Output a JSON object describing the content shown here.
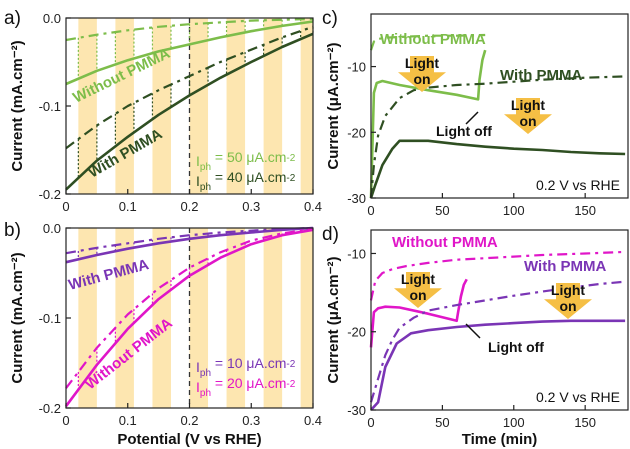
{
  "colors": {
    "light_green": "#7dbd4a",
    "dark_green": "#2f4f22",
    "magenta": "#e016c8",
    "purple": "#7a35b5",
    "stripe": "#fde6b0",
    "arrow": "#f5bf45"
  },
  "chart_data": [
    {
      "id": "a",
      "type": "line",
      "panel_label": "a)",
      "xlabel": "",
      "ylabel": "Current (mA.cm⁻²)",
      "xlim": [
        0,
        0.4
      ],
      "ylim": [
        -0.2,
        0.0
      ],
      "xticks": [
        "0",
        "0.1",
        "0.2",
        "0.3",
        "0.4"
      ],
      "yticks": [
        "0.0",
        "-0.1",
        "-0.2"
      ],
      "light_on_intervals": [
        [
          0.02,
          0.05
        ],
        [
          0.08,
          0.11
        ],
        [
          0.14,
          0.17
        ],
        [
          0.2,
          0.23
        ],
        [
          0.26,
          0.29
        ],
        [
          0.32,
          0.35
        ],
        [
          0.38,
          0.4
        ]
      ],
      "reference_x": 0.2,
      "series": [
        {
          "name": "Without PMMA",
          "color": "light_green",
          "style": "dashed",
          "condition": "light",
          "x": [
            0,
            0.05,
            0.1,
            0.15,
            0.2,
            0.25,
            0.3,
            0.35,
            0.4
          ],
          "y": [
            -0.025,
            -0.019,
            -0.014,
            -0.01,
            -0.007,
            -0.005,
            -0.003,
            -0.002,
            -0.001
          ]
        },
        {
          "name": "Without PMMA",
          "color": "light_green",
          "style": "solid",
          "condition": "dark",
          "x": [
            0,
            0.05,
            0.1,
            0.15,
            0.2,
            0.25,
            0.3,
            0.35,
            0.4
          ],
          "y": [
            -0.075,
            -0.06,
            -0.048,
            -0.038,
            -0.03,
            -0.022,
            -0.015,
            -0.009,
            -0.004
          ]
        },
        {
          "name": "With PMMA",
          "color": "dark_green",
          "style": "dashed",
          "condition": "light",
          "x": [
            0,
            0.05,
            0.1,
            0.15,
            0.2,
            0.25,
            0.3,
            0.35,
            0.4
          ],
          "y": [
            -0.148,
            -0.122,
            -0.1,
            -0.082,
            -0.066,
            -0.05,
            -0.036,
            -0.022,
            -0.01
          ]
        },
        {
          "name": "With PMMA",
          "color": "dark_green",
          "style": "solid",
          "condition": "dark",
          "x": [
            0,
            0.05,
            0.1,
            0.15,
            0.2,
            0.25,
            0.3,
            0.35,
            0.4
          ],
          "y": [
            -0.195,
            -0.162,
            -0.135,
            -0.11,
            -0.088,
            -0.068,
            -0.05,
            -0.033,
            -0.018
          ]
        }
      ],
      "annotations": [
        {
          "text": "Without PMMA",
          "color": "light_green"
        },
        {
          "text": "With PMMA",
          "color": "dark_green"
        }
      ],
      "iph": [
        {
          "label": "I",
          "sub": "ph",
          "value": " = 50 μA.cm",
          "sup": "-2",
          "color": "light_green"
        },
        {
          "label": "I",
          "sub": "ph",
          "value": " = 40 μA.cm",
          "sup": "-2",
          "color": "dark_green"
        }
      ]
    },
    {
      "id": "b",
      "type": "line",
      "panel_label": "b)",
      "xlabel": "Potential (V vs RHE)",
      "ylabel": "Current (mA.cm⁻²)",
      "xlim": [
        0,
        0.4
      ],
      "ylim": [
        -0.2,
        0.0
      ],
      "xticks": [
        "0",
        "0.1",
        "0.2",
        "0.3",
        "0.4"
      ],
      "yticks": [
        "0.0",
        "-0.1",
        "-0.2"
      ],
      "light_on_intervals": [
        [
          0.02,
          0.05
        ],
        [
          0.08,
          0.11
        ],
        [
          0.14,
          0.17
        ],
        [
          0.2,
          0.23
        ],
        [
          0.26,
          0.29
        ],
        [
          0.32,
          0.35
        ],
        [
          0.38,
          0.4
        ]
      ],
      "reference_x": 0.2,
      "series": [
        {
          "name": "With PMMA",
          "color": "purple",
          "style": "dashed",
          "condition": "light",
          "x": [
            0,
            0.05,
            0.1,
            0.15,
            0.2,
            0.25,
            0.3,
            0.35,
            0.4
          ],
          "y": [
            -0.028,
            -0.022,
            -0.017,
            -0.012,
            -0.008,
            -0.005,
            -0.003,
            -0.001,
            0.0
          ]
        },
        {
          "name": "With PMMA",
          "color": "purple",
          "style": "solid",
          "condition": "dark",
          "x": [
            0,
            0.05,
            0.1,
            0.15,
            0.2,
            0.25,
            0.3,
            0.35,
            0.4
          ],
          "y": [
            -0.038,
            -0.03,
            -0.023,
            -0.017,
            -0.012,
            -0.008,
            -0.005,
            -0.002,
            0.0
          ]
        },
        {
          "name": "Without PMMA",
          "color": "magenta",
          "style": "dashed",
          "condition": "light",
          "x": [
            0,
            0.05,
            0.1,
            0.15,
            0.2,
            0.25,
            0.3,
            0.35,
            0.4
          ],
          "y": [
            -0.178,
            -0.133,
            -0.096,
            -0.067,
            -0.044,
            -0.027,
            -0.014,
            -0.006,
            -0.001
          ]
        },
        {
          "name": "Without PMMA",
          "color": "magenta",
          "style": "solid",
          "condition": "dark",
          "x": [
            0,
            0.05,
            0.1,
            0.15,
            0.2,
            0.25,
            0.3,
            0.35,
            0.4
          ],
          "y": [
            -0.198,
            -0.152,
            -0.112,
            -0.079,
            -0.053,
            -0.033,
            -0.018,
            -0.008,
            -0.002
          ]
        }
      ],
      "annotations": [
        {
          "text": "With PMMA",
          "color": "purple"
        },
        {
          "text": "Without PMMA",
          "color": "magenta"
        }
      ],
      "iph": [
        {
          "label": "I",
          "sub": "ph",
          "value": " = 10 μA.cm",
          "sup": "-2",
          "color": "purple"
        },
        {
          "label": "I",
          "sub": "ph",
          "value": " = 20 μA.cm",
          "sup": "-2",
          "color": "magenta"
        }
      ]
    },
    {
      "id": "c",
      "type": "line",
      "panel_label": "c)",
      "xlabel": "",
      "ylabel": "Current (μA.cm⁻²)",
      "xlim": [
        0,
        180
      ],
      "ylim": [
        -30,
        -2
      ],
      "xticks": [
        "0",
        "50",
        "100",
        "150"
      ],
      "yticks": [
        "-10",
        "-20",
        "-30"
      ],
      "series": [
        {
          "name": "Without PMMA",
          "color": "light_green",
          "style": "dashed",
          "condition": "light",
          "x": [
            0,
            2,
            5,
            10,
            20,
            40,
            60,
            80
          ],
          "y": [
            -7.5,
            -6.2,
            -5.8,
            -5.6,
            -5.5,
            -5.3,
            -5.3,
            -5.2
          ]
        },
        {
          "name": "Without PMMA",
          "color": "light_green",
          "style": "solid",
          "condition": "dark",
          "x": [
            0,
            2,
            4,
            8,
            20,
            40,
            60,
            75,
            76,
            78,
            80
          ],
          "y": [
            -30,
            -14,
            -12.5,
            -12.2,
            -12.8,
            -13.6,
            -14.3,
            -15,
            -12,
            -9,
            -7.5
          ]
        },
        {
          "name": "With PMMA",
          "color": "dark_green",
          "style": "dashed",
          "condition": "light",
          "x": [
            0,
            2,
            5,
            10,
            20,
            30,
            40,
            60,
            80,
            100,
            120,
            150,
            178
          ],
          "y": [
            -30,
            -25,
            -20.5,
            -17.5,
            -14.8,
            -13.6,
            -13.2,
            -12.8,
            -12.6,
            -12.3,
            -12.0,
            -11.7,
            -11.5
          ]
        },
        {
          "name": "With PMMA",
          "color": "dark_green",
          "style": "solid",
          "condition": "dark",
          "x": [
            0,
            3,
            8,
            15,
            20,
            40,
            60,
            80,
            100,
            120,
            140,
            160,
            178
          ],
          "y": [
            -30,
            -28,
            -25,
            -22.5,
            -21.3,
            -21.3,
            -21.8,
            -22.2,
            -22.5,
            -22.7,
            -23.0,
            -23.2,
            -23.3
          ]
        }
      ],
      "annotations": [
        {
          "text": "Without PMMA",
          "color": "light_green"
        },
        {
          "text": "With PMMA",
          "color": "dark_green"
        },
        {
          "text": "Light off",
          "color": "black"
        }
      ],
      "arrow_labels": [
        "Light\non",
        "Light\non"
      ],
      "footnote": "0.2 V vs RHE"
    },
    {
      "id": "d",
      "type": "line",
      "panel_label": "d)",
      "xlabel": "Time (min)",
      "ylabel": "Current (μA.cm⁻²)",
      "xlim": [
        0,
        180
      ],
      "ylim": [
        -30,
        -7
      ],
      "xticks": [
        "0",
        "50",
        "100",
        "150"
      ],
      "yticks": [
        "-10",
        "-20",
        "-30"
      ],
      "series": [
        {
          "name": "Without PMMA",
          "color": "magenta",
          "style": "dashed",
          "condition": "light",
          "x": [
            0,
            3,
            8,
            15,
            25,
            40,
            60,
            80,
            100,
            120,
            150,
            178
          ],
          "y": [
            -16,
            -13.5,
            -12.5,
            -12,
            -11.6,
            -11.2,
            -10.8,
            -10.6,
            -10.4,
            -10.2,
            -10.0,
            -9.8
          ]
        },
        {
          "name": "Without PMMA",
          "color": "magenta",
          "style": "solid",
          "condition": "dark",
          "x": [
            0,
            2,
            5,
            10,
            20,
            40,
            60,
            61,
            63,
            65,
            67
          ],
          "y": [
            -22,
            -17.5,
            -17,
            -16.8,
            -16.9,
            -17.7,
            -18.6,
            -17.5,
            -15.5,
            -14,
            -13.3
          ]
        },
        {
          "name": "With PMMA",
          "color": "purple",
          "style": "dashed",
          "condition": "light",
          "x": [
            0,
            5,
            10,
            15,
            20,
            30,
            40,
            60,
            80,
            100,
            130,
            160,
            178
          ],
          "y": [
            -29,
            -26,
            -23,
            -21,
            -19.5,
            -18.2,
            -17.3,
            -16.6,
            -16.0,
            -15.4,
            -14.6,
            -13.9,
            -13.6
          ]
        },
        {
          "name": "With PMMA",
          "color": "purple",
          "style": "solid",
          "condition": "dark",
          "x": [
            0,
            5,
            10,
            18,
            28,
            40,
            60,
            80,
            100,
            120,
            140,
            160,
            178
          ],
          "y": [
            -30,
            -29,
            -24.5,
            -21.5,
            -20.2,
            -19.8,
            -19.4,
            -19.1,
            -18.9,
            -18.7,
            -18.6,
            -18.6,
            -18.6
          ]
        }
      ],
      "annotations": [
        {
          "text": "Without PMMA",
          "color": "magenta"
        },
        {
          "text": "With PMMA",
          "color": "purple"
        },
        {
          "text": "Light off",
          "color": "black"
        }
      ],
      "arrow_labels": [
        "Light\non",
        "Light\non"
      ],
      "footnote": "0.2 V vs RHE"
    }
  ]
}
